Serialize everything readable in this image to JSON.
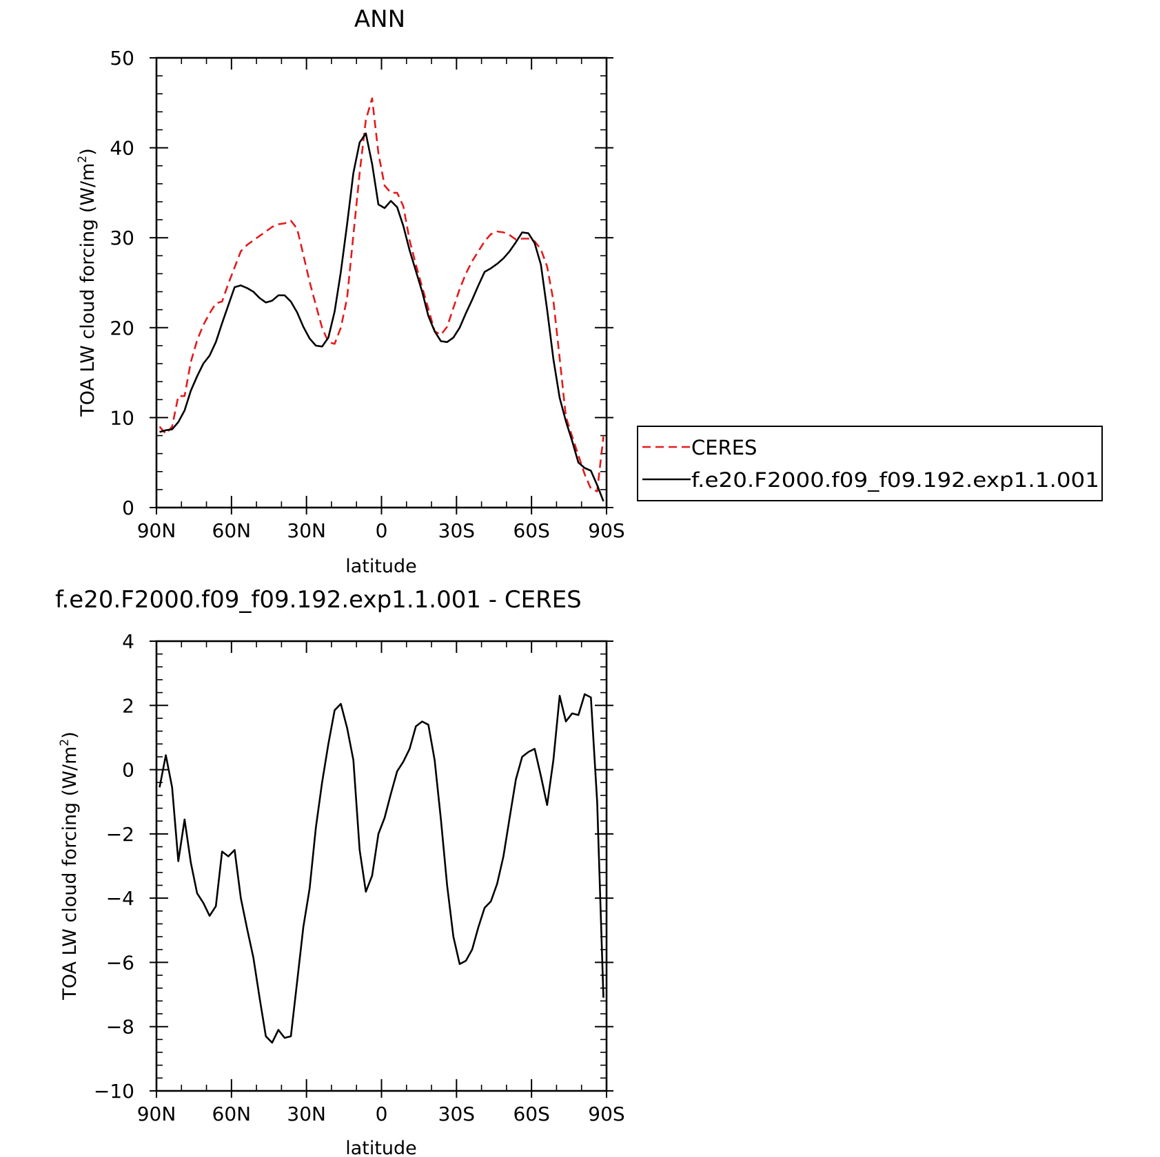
{
  "chart_data": [
    {
      "type": "line",
      "title": "ANN",
      "xlabel": "latitude",
      "ylabel": "TOA LW cloud forcing (W/m",
      "ylabel_sup": "2",
      "ylabel_close": ")",
      "xlim": [
        90,
        -90
      ],
      "ylim": [
        0,
        50
      ],
      "x_ticks": [
        90,
        60,
        30,
        0,
        -30,
        -60,
        -90
      ],
      "x_tick_labels": [
        "90N",
        "60N",
        "30N",
        "0",
        "30S",
        "60S",
        "90S"
      ],
      "y_ticks": [
        0,
        10,
        20,
        30,
        40,
        50
      ],
      "y_tick_labels": [
        "0",
        "10",
        "20",
        "30",
        "40",
        "50"
      ],
      "legend_position": "right",
      "series": [
        {
          "name": "CERES",
          "color": "#e31a1c",
          "style": "dashed",
          "x": [
            88.75,
            86.25,
            83.75,
            81.25,
            78.75,
            76.25,
            73.75,
            71.25,
            68.75,
            66.25,
            63.75,
            61.25,
            58.75,
            56.25,
            53.75,
            51.25,
            48.75,
            46.25,
            43.75,
            41.25,
            38.75,
            36.25,
            33.75,
            31.25,
            28.75,
            26.25,
            23.75,
            21.25,
            18.75,
            16.25,
            13.75,
            11.25,
            8.75,
            6.25,
            3.75,
            1.25,
            -1.25,
            -3.75,
            -6.25,
            -8.75,
            -11.25,
            -13.75,
            -16.25,
            -18.75,
            -21.25,
            -23.75,
            -26.25,
            -28.75,
            -31.25,
            -33.75,
            -36.25,
            -38.75,
            -41.25,
            -43.75,
            -46.25,
            -48.75,
            -51.25,
            -53.75,
            -56.25,
            -58.75,
            -61.25,
            -63.75,
            -66.25,
            -68.75,
            -71.25,
            -73.75,
            -76.25,
            -78.75,
            -81.25,
            -83.75,
            -86.25,
            -88.75
          ],
          "y": [
            9.0,
            8.2,
            9.0,
            12.4,
            12.4,
            16.2,
            18.6,
            20.3,
            21.6,
            22.7,
            22.9,
            24.9,
            26.7,
            28.5,
            29.2,
            29.7,
            30.2,
            30.7,
            31.2,
            31.5,
            31.6,
            31.9,
            31.0,
            28.1,
            25.1,
            22.5,
            20.0,
            18.4,
            18.2,
            20.0,
            23.3,
            30.3,
            37.2,
            43.1,
            45.5,
            39.4,
            35.8,
            35.0,
            35.0,
            33.5,
            29.7,
            27.0,
            24.5,
            22.1,
            19.6,
            19.2,
            20.1,
            22.2,
            24.3,
            26.0,
            27.4,
            28.5,
            29.6,
            30.4,
            30.7,
            30.6,
            30.3,
            29.8,
            29.9,
            29.9,
            29.6,
            28.7,
            26.8,
            23.0,
            16.6,
            10.1,
            7.9,
            5.8,
            3.7,
            2.1,
            1.8,
            7.9
          ]
        },
        {
          "name": "f.e20.F2000.f09_f09.192.exp1.1.001",
          "color": "#000000",
          "style": "solid",
          "x": [
            88.75,
            86.25,
            83.75,
            81.25,
            78.75,
            76.25,
            73.75,
            71.25,
            68.75,
            66.25,
            63.75,
            61.25,
            58.75,
            56.25,
            53.75,
            51.25,
            48.75,
            46.25,
            43.75,
            41.25,
            38.75,
            36.25,
            33.75,
            31.25,
            28.75,
            26.25,
            23.75,
            21.25,
            18.75,
            16.25,
            13.75,
            11.25,
            8.75,
            6.25,
            3.75,
            1.25,
            -1.25,
            -3.75,
            -6.25,
            -8.75,
            -11.25,
            -13.75,
            -16.25,
            -18.75,
            -21.25,
            -23.75,
            -26.25,
            -28.75,
            -31.25,
            -33.75,
            -36.25,
            -38.75,
            -41.25,
            -43.75,
            -46.25,
            -48.75,
            -51.25,
            -53.75,
            -56.25,
            -58.75,
            -61.25,
            -63.75,
            -66.25,
            -68.75,
            -71.25,
            -73.75,
            -76.25,
            -78.75,
            -81.25,
            -83.75,
            -86.25,
            -88.75
          ],
          "y": [
            8.4,
            8.6,
            8.7,
            9.5,
            10.8,
            13.0,
            14.6,
            16.0,
            16.9,
            18.4,
            20.5,
            22.5,
            24.5,
            24.7,
            24.4,
            24.0,
            23.3,
            22.8,
            23.0,
            23.6,
            23.6,
            22.9,
            21.7,
            20.1,
            18.8,
            18.0,
            17.9,
            18.9,
            21.8,
            26.2,
            31.5,
            37.2,
            40.6,
            41.6,
            38.2,
            33.7,
            33.3,
            34.1,
            33.4,
            31.3,
            28.6,
            26.3,
            24.0,
            21.3,
            19.6,
            18.5,
            18.4,
            18.9,
            20.0,
            21.6,
            23.1,
            24.7,
            26.2,
            26.6,
            27.1,
            27.7,
            28.5,
            29.5,
            30.6,
            30.5,
            29.4,
            27.0,
            22.0,
            16.5,
            12.2,
            9.6,
            7.4,
            5.0,
            4.4,
            4.1,
            2.5,
            0.7
          ]
        }
      ]
    },
    {
      "type": "line",
      "title": "f.e20.F2000.f09_f09.192.exp1.1.001 - CERES",
      "xlabel": "latitude",
      "ylabel": "TOA LW cloud forcing (W/m",
      "ylabel_sup": "2",
      "ylabel_close": ")",
      "xlim": [
        90,
        -90
      ],
      "ylim": [
        -10,
        4
      ],
      "x_ticks": [
        90,
        60,
        30,
        0,
        -30,
        -60,
        -90
      ],
      "x_tick_labels": [
        "90N",
        "60N",
        "30N",
        "0",
        "30S",
        "60S",
        "90S"
      ],
      "y_ticks": [
        -10,
        -8,
        -6,
        -4,
        -2,
        0,
        2,
        4
      ],
      "y_tick_labels": [
        "−10",
        "−8",
        "−6",
        "−4",
        "−2",
        "0",
        "2",
        "4"
      ],
      "series": [
        {
          "color": "#000000",
          "style": "solid",
          "x": [
            88.75,
            86.25,
            83.75,
            81.25,
            78.75,
            76.25,
            73.75,
            71.25,
            68.75,
            66.25,
            63.75,
            61.25,
            58.75,
            56.25,
            53.75,
            51.25,
            48.75,
            46.25,
            43.75,
            41.25,
            38.75,
            36.25,
            33.75,
            31.25,
            28.75,
            26.25,
            23.75,
            21.25,
            18.75,
            16.25,
            13.75,
            11.25,
            8.75,
            6.25,
            3.75,
            1.25,
            -1.25,
            -3.75,
            -6.25,
            -8.75,
            -11.25,
            -13.75,
            -16.25,
            -18.75,
            -21.25,
            -23.75,
            -26.25,
            -28.75,
            -31.25,
            -33.75,
            -36.25,
            -38.75,
            -41.25,
            -43.75,
            -46.25,
            -48.75,
            -51.25,
            -53.75,
            -56.25,
            -58.75,
            -61.25,
            -63.75,
            -66.25,
            -68.75,
            -71.25,
            -73.75,
            -76.25,
            -78.75,
            -81.25,
            -83.75,
            -86.25,
            -88.75
          ],
          "y": [
            -0.55,
            0.45,
            -0.55,
            -2.85,
            -1.55,
            -2.9,
            -3.85,
            -4.15,
            -4.55,
            -4.25,
            -2.55,
            -2.7,
            -2.5,
            -4.0,
            -4.95,
            -5.85,
            -7.1,
            -8.3,
            -8.5,
            -8.1,
            -8.35,
            -8.3,
            -6.6,
            -4.9,
            -3.7,
            -1.8,
            -0.4,
            0.8,
            1.85,
            2.05,
            1.3,
            0.3,
            -2.5,
            -3.8,
            -3.3,
            -2.0,
            -1.5,
            -0.75,
            -0.05,
            0.25,
            0.65,
            1.35,
            1.5,
            1.4,
            0.3,
            -1.55,
            -3.6,
            -5.2,
            -6.05,
            -5.95,
            -5.6,
            -4.9,
            -4.3,
            -4.1,
            -3.55,
            -2.7,
            -1.5,
            -0.3,
            0.4,
            0.55,
            0.65,
            -0.2,
            -1.1,
            0.3,
            2.3,
            1.5,
            1.75,
            1.7,
            2.35,
            2.25,
            -1.0,
            -7.1
          ]
        }
      ]
    }
  ]
}
